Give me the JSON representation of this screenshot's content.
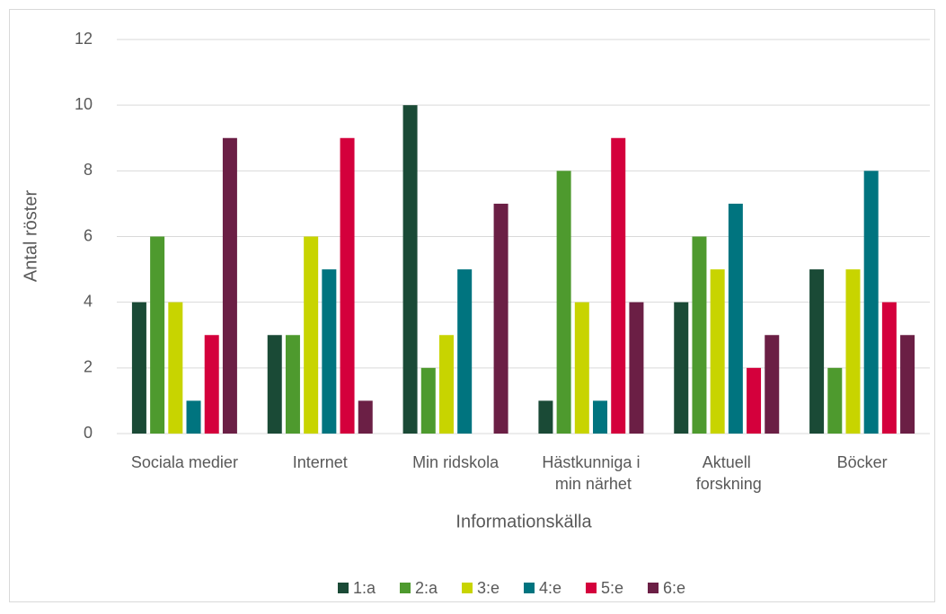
{
  "chart_data": {
    "type": "bar",
    "categories": [
      "Sociala medier",
      "Internet",
      "Min ridskola",
      "Hästkunniga i min närhet",
      "Aktuell forskning",
      "Böcker"
    ],
    "series": [
      {
        "name": "1:a",
        "color": "#1a4a36",
        "values": [
          4,
          3,
          10,
          1,
          4,
          5
        ]
      },
      {
        "name": "2:a",
        "color": "#4e9a2e",
        "values": [
          6,
          3,
          2,
          8,
          6,
          2
        ]
      },
      {
        "name": "3:e",
        "color": "#c8d400",
        "values": [
          4,
          6,
          3,
          4,
          5,
          5
        ]
      },
      {
        "name": "4:e",
        "color": "#00747f",
        "values": [
          1,
          5,
          5,
          1,
          7,
          8
        ]
      },
      {
        "name": "5:e",
        "color": "#d4003c",
        "values": [
          3,
          9,
          0,
          9,
          2,
          4
        ]
      },
      {
        "name": "6:e",
        "color": "#6b1f45",
        "values": [
          9,
          1,
          7,
          4,
          3,
          3
        ]
      }
    ],
    "x_label": "Informationskälla",
    "y_label": "Antal röster",
    "ylim": [
      0,
      12
    ],
    "yticks": [
      0,
      2,
      4,
      6,
      8,
      10,
      12
    ],
    "grid": true,
    "legend": "bottom"
  }
}
